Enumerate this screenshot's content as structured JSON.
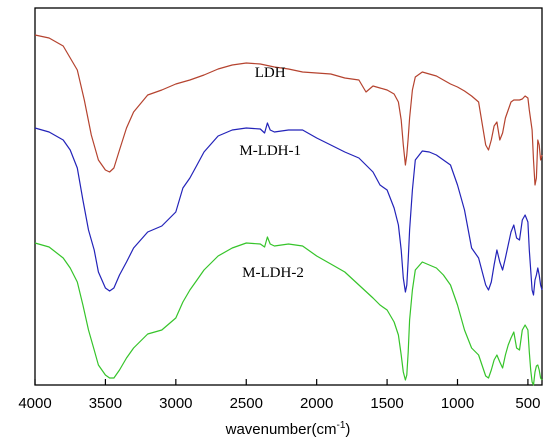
{
  "chart_data": {
    "type": "line",
    "title": "",
    "xlabel": "wavenumber(cm",
    "xlabel_sup": "-1",
    "xlabel_end": ")",
    "ylabel": "",
    "xlim": [
      4000,
      400
    ],
    "x_reversed": true,
    "y_ticks_shown": false,
    "grid": false,
    "legend": "none",
    "x_ticks": [
      4000,
      3500,
      3000,
      2500,
      2000,
      1500,
      1000,
      500
    ],
    "x_tick_labels": [
      "4000",
      "3500",
      "3000",
      "2500",
      "2000",
      "1500",
      "1000",
      "500"
    ],
    "series": [
      {
        "name": "LDH",
        "color": "#b5432f",
        "label_at": [
          2330,
          72
        ],
        "x": [
          4000,
          3900,
          3800,
          3700,
          3650,
          3600,
          3550,
          3500,
          3470,
          3440,
          3400,
          3350,
          3300,
          3200,
          3100,
          3000,
          2900,
          2800,
          2700,
          2600,
          2500,
          2400,
          2300,
          2200,
          2100,
          2000,
          1900,
          1800,
          1700,
          1650,
          1600,
          1550,
          1500,
          1450,
          1420,
          1400,
          1385,
          1370,
          1360,
          1350,
          1340,
          1320,
          1300,
          1250,
          1200,
          1150,
          1100,
          1050,
          1000,
          950,
          900,
          850,
          800,
          780,
          760,
          740,
          720,
          700,
          680,
          660,
          640,
          620,
          600,
          580,
          560,
          540,
          520,
          500,
          490,
          480,
          470,
          460,
          450,
          440,
          430,
          420,
          410,
          400
        ],
        "y": [
          35,
          38,
          46,
          70,
          100,
          135,
          160,
          170,
          172,
          168,
          150,
          128,
          112,
          95,
          90,
          84,
          80,
          75,
          69,
          65,
          63,
          64,
          67,
          69,
          72,
          73,
          74,
          78,
          80,
          92,
          86,
          88,
          90,
          94,
          102,
          120,
          145,
          165,
          155,
          138,
          118,
          90,
          77,
          72,
          74,
          76,
          80,
          84,
          87,
          91,
          96,
          102,
          145,
          150,
          140,
          126,
          122,
          140,
          133,
          118,
          110,
          102,
          100,
          100,
          100,
          99,
          96,
          98,
          110,
          120,
          130,
          160,
          185,
          178,
          140,
          145,
          160,
          155
        ]
      },
      {
        "name": "M-LDH-1",
        "color": "#2323b9",
        "label_at": [
          2330,
          150
        ],
        "x": [
          4000,
          3900,
          3800,
          3750,
          3700,
          3660,
          3620,
          3580,
          3550,
          3500,
          3470,
          3440,
          3400,
          3350,
          3300,
          3200,
          3100,
          3000,
          2950,
          2900,
          2850,
          2800,
          2700,
          2600,
          2500,
          2400,
          2370,
          2350,
          2330,
          2300,
          2200,
          2100,
          2000,
          1900,
          1800,
          1700,
          1600,
          1550,
          1500,
          1450,
          1420,
          1400,
          1385,
          1370,
          1360,
          1350,
          1340,
          1320,
          1300,
          1250,
          1200,
          1150,
          1100,
          1050,
          1000,
          950,
          900,
          850,
          800,
          780,
          760,
          740,
          720,
          700,
          680,
          660,
          640,
          620,
          600,
          580,
          560,
          540,
          520,
          500,
          490,
          480,
          470,
          460,
          450,
          440,
          430,
          420,
          410,
          400
        ],
        "y": [
          128,
          132,
          140,
          150,
          168,
          200,
          230,
          250,
          272,
          288,
          291,
          288,
          275,
          262,
          248,
          232,
          226,
          212,
          188,
          178,
          165,
          152,
          136,
          130,
          128,
          129,
          133,
          123,
          130,
          132,
          130,
          130,
          138,
          145,
          152,
          158,
          172,
          185,
          190,
          208,
          225,
          250,
          278,
          292,
          285,
          260,
          230,
          190,
          160,
          151,
          152,
          155,
          160,
          165,
          185,
          210,
          248,
          258,
          285,
          290,
          282,
          265,
          250,
          262,
          270,
          258,
          245,
          232,
          225,
          238,
          240,
          220,
          215,
          222,
          250,
          270,
          290,
          295,
          280,
          275,
          268,
          275,
          285,
          290
        ]
      },
      {
        "name": "M-LDH-2",
        "color": "#36c42a",
        "label_at": [
          2310,
          272
        ],
        "x": [
          4000,
          3900,
          3800,
          3750,
          3700,
          3660,
          3620,
          3580,
          3550,
          3500,
          3470,
          3440,
          3400,
          3350,
          3300,
          3200,
          3100,
          3000,
          2950,
          2900,
          2850,
          2800,
          2700,
          2600,
          2500,
          2400,
          2370,
          2350,
          2330,
          2300,
          2200,
          2100,
          2000,
          1900,
          1800,
          1700,
          1600,
          1550,
          1500,
          1450,
          1420,
          1400,
          1385,
          1370,
          1360,
          1350,
          1340,
          1320,
          1300,
          1250,
          1200,
          1150,
          1100,
          1050,
          1000,
          950,
          900,
          850,
          800,
          780,
          760,
          740,
          720,
          700,
          680,
          660,
          640,
          620,
          600,
          580,
          560,
          540,
          520,
          500,
          490,
          480,
          470,
          460,
          450,
          440,
          430,
          420,
          410,
          400
        ],
        "y": [
          243,
          247,
          258,
          268,
          282,
          305,
          330,
          350,
          365,
          375,
          378,
          378,
          370,
          358,
          348,
          334,
          330,
          318,
          302,
          290,
          280,
          270,
          256,
          248,
          243,
          244,
          247,
          237,
          244,
          246,
          244,
          246,
          256,
          264,
          272,
          285,
          298,
          305,
          310,
          322,
          335,
          355,
          372,
          380,
          375,
          352,
          320,
          290,
          270,
          262,
          265,
          268,
          275,
          285,
          305,
          330,
          348,
          355,
          376,
          378,
          370,
          360,
          355,
          362,
          368,
          355,
          345,
          338,
          332,
          348,
          350,
          330,
          325,
          330,
          352,
          370,
          382,
          385,
          372,
          366,
          365,
          370,
          378,
          380
        ]
      }
    ]
  }
}
